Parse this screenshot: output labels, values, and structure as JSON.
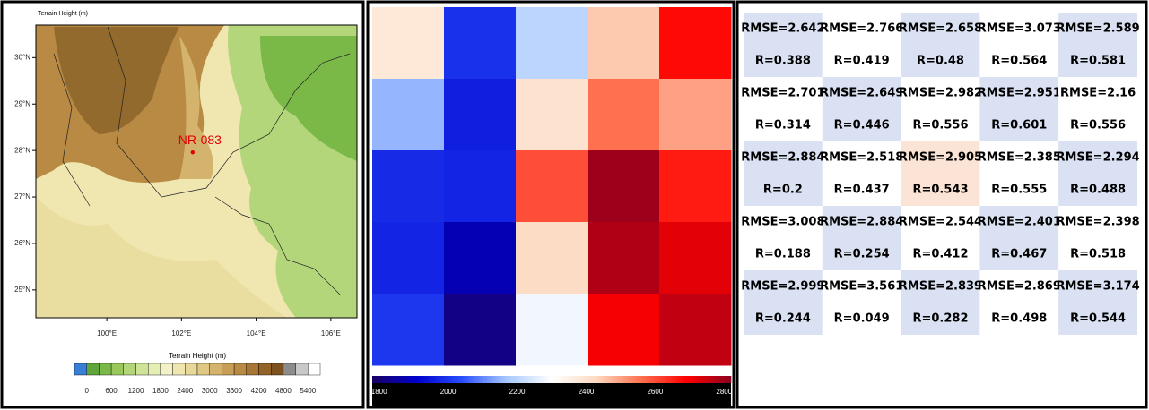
{
  "map": {
    "title": "Terrain Height   (m)",
    "colorbar_label": "Terrain Height  (m)",
    "xlim": [
      98.1,
      106.7
    ],
    "ylim": [
      24.4,
      30.7
    ],
    "xticks": [
      {
        "value": 100,
        "label": "100°E"
      },
      {
        "value": 102,
        "label": "102°E"
      },
      {
        "value": 104,
        "label": "104°E"
      },
      {
        "value": 106,
        "label": "106°E"
      }
    ],
    "yticks": [
      {
        "value": 25,
        "label": "25°N"
      },
      {
        "value": 26,
        "label": "26°N"
      },
      {
        "value": 27,
        "label": "27°N"
      },
      {
        "value": 28,
        "label": "28°N"
      },
      {
        "value": 29,
        "label": "29°N"
      },
      {
        "value": 30,
        "label": "30°N"
      }
    ],
    "station": {
      "name": "NR-083",
      "lon": 102.3,
      "lat": 27.96,
      "color": "#e00000"
    },
    "colorbar_lim": [
      -300,
      5700
    ],
    "colorbar_ticks": [
      0,
      600,
      1200,
      1800,
      2400,
      3000,
      3600,
      4200,
      4800,
      5400
    ],
    "colorbar_colors": [
      "#3a7fd6",
      "#5fa63a",
      "#7ab848",
      "#98c85c",
      "#b4d67a",
      "#cfe398",
      "#e5eeb4",
      "#f3f1c8",
      "#efe6b0",
      "#e8d89a",
      "#dfc883",
      "#d4b46d",
      "#c69e55",
      "#b88a44",
      "#a87535",
      "#946328",
      "#7d521f",
      "#8c8c8c",
      "#c8c8c8",
      "#ffffff"
    ]
  },
  "chart_data": {
    "type": "heatmap",
    "values": [
      [
        2380,
        1990,
        2200,
        2450,
        2680
      ],
      [
        2150,
        1960,
        2400,
        2560,
        2500
      ],
      [
        1980,
        1970,
        2600,
        2800,
        2660
      ],
      [
        1970,
        1880,
        2420,
        2780,
        2720
      ],
      [
        2000,
        1820,
        2280,
        2700,
        2760
      ]
    ],
    "colorbar_lim": [
      1780,
      2820
    ],
    "colorbar_ticks": [
      1800,
      2000,
      2200,
      2400,
      2600,
      2800
    ],
    "colormap": [
      "#1a0066",
      "#0000cc",
      "#2a4fff",
      "#a8c8ff",
      "#ffffff",
      "#fdd9c0",
      "#ff7050",
      "#ff0000",
      "#8b0020"
    ]
  },
  "table": {
    "rows": [
      [
        "RMSE=2.642",
        "RMSE=2.766",
        "RMSE=2.658",
        "RMSE=3.073",
        "RMSE=2.589"
      ],
      [
        "R=0.388",
        "R=0.419",
        "R=0.48",
        "R=0.564",
        "R=0.581"
      ],
      [
        "RMSE=2.701",
        "RMSE=2.649",
        "RMSE=2.982",
        "RMSE=2.951",
        "RMSE=2.16"
      ],
      [
        "R=0.314",
        "R=0.446",
        "R=0.556",
        "R=0.601",
        "R=0.556"
      ],
      [
        "RMSE=2.884",
        "RMSE=2.518",
        "RMSE=2.905",
        "RMSE=2.385",
        "RMSE=2.294"
      ],
      [
        "R=0.2",
        "R=0.437",
        "R=0.543",
        "R=0.555",
        "R=0.488"
      ],
      [
        "RMSE=3.008",
        "RMSE=2.884",
        "RMSE=2.544",
        "RMSE=2.401",
        "RMSE=2.398"
      ],
      [
        "R=0.188",
        "R=0.254",
        "R=0.412",
        "R=0.467",
        "R=0.518"
      ],
      [
        "RMSE=2.999",
        "RMSE=3.561",
        "RMSE=2.839",
        "RMSE=2.869",
        "RMSE=3.174"
      ],
      [
        "R=0.244",
        "R=0.049",
        "R=0.282",
        "R=0.498",
        "R=0.544"
      ]
    ]
  }
}
